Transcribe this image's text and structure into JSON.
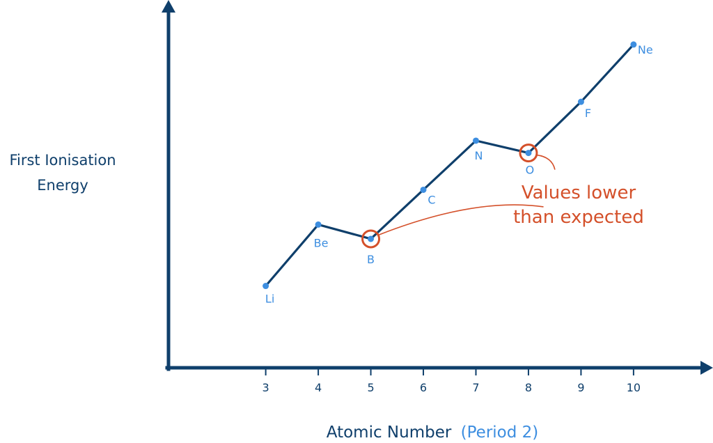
{
  "chart_data": {
    "type": "line",
    "x": [
      3,
      4,
      5,
      6,
      7,
      8,
      9,
      10
    ],
    "x_ticks": [
      "3",
      "4",
      "5",
      "6",
      "7",
      "8",
      "9",
      "10"
    ],
    "values": [
      4.0,
      7.0,
      6.3,
      8.7,
      11.1,
      10.5,
      13.0,
      15.8
    ],
    "point_labels": [
      "Li",
      "Be",
      "B",
      "C",
      "N",
      "O",
      "F",
      "Ne"
    ],
    "xlabel": "Atomic Number",
    "xlabel_suffix": "(Period 2)",
    "ylabel_line1": "First Ionisation",
    "ylabel_line2": "Energy",
    "xlim": [
      1.15,
      11.3
    ],
    "ylim": [
      0,
      17.5
    ],
    "grid": false,
    "highlighted_points": [
      "B",
      "O"
    ],
    "annotation": {
      "line1": "Values lower",
      "line2": "than expected"
    }
  },
  "colors": {
    "axis": "#0f3f6b",
    "line": "#0f3f6b",
    "point": "#3d8ee0",
    "point_label": "#3d8ee0",
    "highlight": "#d4502a",
    "annotation": "#d4502a",
    "xlabel_suffix": "#3d8ee0"
  }
}
